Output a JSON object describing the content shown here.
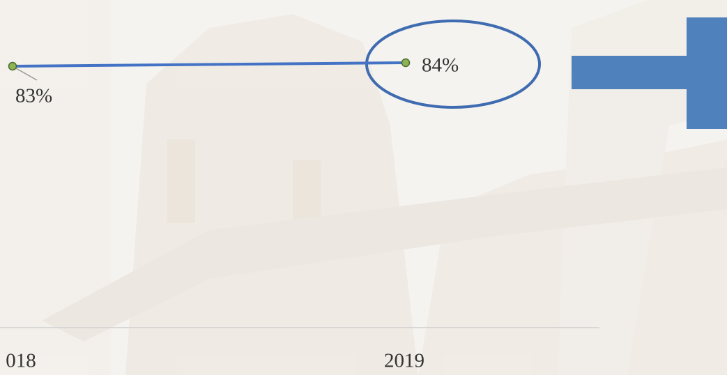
{
  "chart_data": {
    "type": "line",
    "categories": [
      "018",
      "2019"
    ],
    "series": [
      {
        "color": "#4472c4",
        "marker_color": "#8cb454",
        "values": [
          83,
          84
        ],
        "value_labels": [
          "83%",
          "84%"
        ]
      }
    ]
  }
}
